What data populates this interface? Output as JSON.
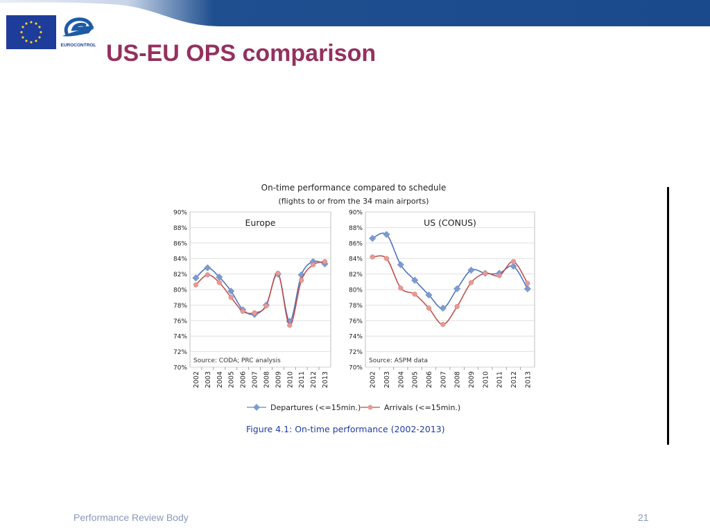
{
  "slide": {
    "title": "US-EU OPS comparison",
    "logo_text": "EUROCONTROL",
    "footer_left": "Performance Review Body",
    "page_number": "21"
  },
  "colors": {
    "header_blue": "#1a4a8c",
    "title": "#94305f",
    "departures": "#7b9bd1",
    "arrivals": "#d9605e",
    "caption": "#1f3d9f"
  },
  "chart_data": {
    "type": "line",
    "title": "On-time performance compared to schedule",
    "subtitle": "(flights to or from the 34 main airports)",
    "caption": "Figure 4.1: On-time performance (2002-2013)",
    "x": [
      "2002",
      "2003",
      "2004",
      "2005",
      "2006",
      "2007",
      "2008",
      "2009",
      "2010",
      "2011",
      "2012",
      "2013"
    ],
    "y_ticks": [
      "70%",
      "72%",
      "74%",
      "76%",
      "78%",
      "80%",
      "82%",
      "84%",
      "86%",
      "88%",
      "90%"
    ],
    "ylim": [
      70,
      90
    ],
    "grid": true,
    "legend_position": "bottom",
    "legend": [
      "Departures (<=15min.)",
      "Arrivals (<=15min.)"
    ],
    "panels": [
      {
        "name": "Europe",
        "source": "Source: CODA; PRC analysis",
        "series": [
          {
            "name": "Departures (<=15min.)",
            "values": [
              81.5,
              82.8,
              81.6,
              79.8,
              77.4,
              76.8,
              78.0,
              82.0,
              75.9,
              81.9,
              83.6,
              83.3
            ]
          },
          {
            "name": "Arrivals (<=15min.)",
            "values": [
              80.6,
              81.9,
              80.9,
              79.0,
              77.2,
              77.0,
              77.9,
              82.1,
              75.4,
              81.2,
              83.2,
              83.6
            ]
          }
        ]
      },
      {
        "name": "US (CONUS)",
        "source": "Source: ASPM data",
        "series": [
          {
            "name": "Departures (<=15min.)",
            "values": [
              86.6,
              87.1,
              83.2,
              81.2,
              79.3,
              77.6,
              80.1,
              82.5,
              82.1,
              82.1,
              83.0,
              80.1
            ]
          },
          {
            "name": "Arrivals (<=15min.)",
            "values": [
              84.2,
              84.0,
              80.2,
              79.4,
              77.6,
              75.5,
              77.8,
              80.9,
              82.1,
              81.8,
              83.6,
              80.8
            ]
          }
        ]
      }
    ]
  }
}
